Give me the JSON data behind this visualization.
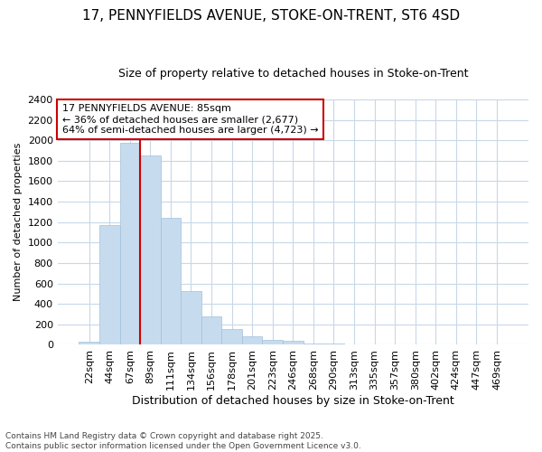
{
  "title": "17, PENNYFIELDS AVENUE, STOKE-ON-TRENT, ST6 4SD",
  "subtitle": "Size of property relative to detached houses in Stoke-on-Trent",
  "xlabel": "Distribution of detached houses by size in Stoke-on-Trent",
  "ylabel": "Number of detached properties",
  "categories": [
    "22sqm",
    "44sqm",
    "67sqm",
    "89sqm",
    "111sqm",
    "134sqm",
    "156sqm",
    "178sqm",
    "201sqm",
    "223sqm",
    "246sqm",
    "268sqm",
    "290sqm",
    "313sqm",
    "335sqm",
    "357sqm",
    "380sqm",
    "402sqm",
    "424sqm",
    "447sqm",
    "469sqm"
  ],
  "values": [
    30,
    1170,
    1975,
    1855,
    1245,
    525,
    275,
    150,
    88,
    50,
    42,
    10,
    15,
    5,
    3,
    2,
    1,
    1,
    0,
    1,
    0
  ],
  "bar_color": "#c6dcee",
  "bar_edge_color": "#a0c0dc",
  "vline_x_index": 3,
  "vline_color": "#cc0000",
  "annotation_text": "17 PENNYFIELDS AVENUE: 85sqm\n← 36% of detached houses are smaller (2,677)\n64% of semi-detached houses are larger (4,723) →",
  "annotation_box_facecolor": "white",
  "annotation_box_edgecolor": "#cc0000",
  "ylim": [
    0,
    2400
  ],
  "yticks": [
    0,
    200,
    400,
    600,
    800,
    1000,
    1200,
    1400,
    1600,
    1800,
    2000,
    2200,
    2400
  ],
  "footer_line1": "Contains HM Land Registry data © Crown copyright and database right 2025.",
  "footer_line2": "Contains public sector information licensed under the Open Government Licence v3.0.",
  "bg_color": "#ffffff",
  "grid_color": "#c8d8e8",
  "title_fontsize": 11,
  "subtitle_fontsize": 9,
  "xlabel_fontsize": 9,
  "ylabel_fontsize": 8,
  "tick_fontsize": 8,
  "annot_fontsize": 8
}
